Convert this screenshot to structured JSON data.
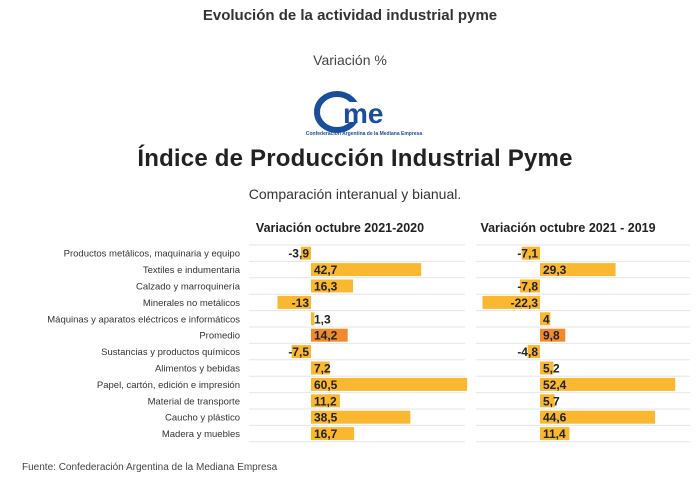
{
  "header": {
    "title": "Evolución de la actividad industrial pyme",
    "subtitle": "Variación %"
  },
  "logo": {
    "text": "Confederación Argentina de la Mediana Empresa",
    "color": "#1a4e9c"
  },
  "chart_data": {
    "type": "bar",
    "orientation": "horizontal",
    "title": "Índice de Producción Industrial Pyme",
    "subtitle": "Comparación interanual y bianual.",
    "categories": [
      "Productos metálicos, maquinaria y equipo",
      "Textiles e indumentaria",
      "Calzado y marroquinería",
      "Minerales no metálicos",
      "Máquinas y aparatos eléctricos e informáticos",
      "Promedio",
      "Sustancias y productos químicos",
      "Alimentos y bebidas",
      "Papel, cartón, edición e impresión",
      "Material de transporte",
      "Caucho y plástico",
      "Madera y muebles"
    ],
    "series": [
      {
        "name": "Variación octubre 2021-2020",
        "values": [
          -3.9,
          42.7,
          16.3,
          -13,
          1.3,
          14.2,
          -7.5,
          7.2,
          60.5,
          11.2,
          38.5,
          16.7
        ],
        "labels": [
          "-3,9",
          "42,7",
          "16,3",
          "-13",
          "1,3",
          "14,2",
          "-7,5",
          "7,2",
          "60,5",
          "11,2",
          "38,5",
          "16,7"
        ]
      },
      {
        "name": "Variación octubre 2021 - 2019",
        "values": [
          -7.1,
          29.3,
          -7.8,
          -22.3,
          4,
          9.8,
          -4.8,
          5.2,
          52.4,
          5.7,
          44.6,
          11.4
        ],
        "labels": [
          "-7,1",
          "29,3",
          "-7,8",
          "-22,3",
          "4",
          "9,8",
          "-4,8",
          "5,2",
          "52,4",
          "5,7",
          "44,6",
          "11,4"
        ]
      }
    ],
    "highlight_category": "Promedio",
    "colors": {
      "bar": "#f9b82f",
      "highlight": "#f08a2c",
      "grid": "#e6e6e6"
    },
    "grid": true,
    "legend": "none"
  },
  "footer": {
    "source": "Fuente: Confederación Argentina de la Mediana Empresa"
  }
}
